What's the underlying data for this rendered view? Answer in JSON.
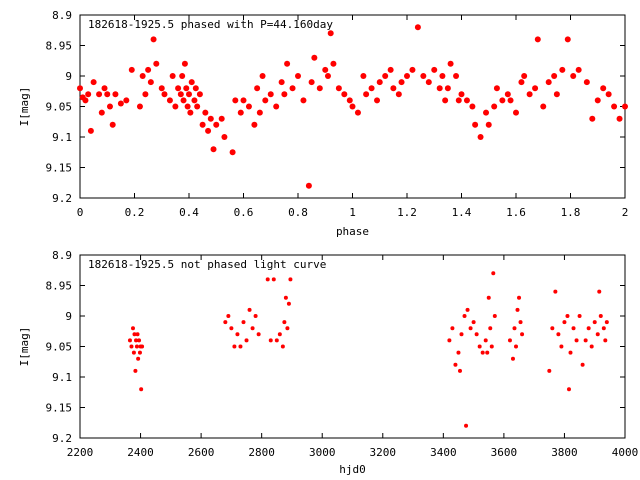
{
  "chart_data": [
    {
      "type": "scatter",
      "title": "182618-1925.5 phased with P=44.160day",
      "xlabel": "phase",
      "ylabel": "I[mag]",
      "xlim": [
        0,
        2
      ],
      "ylim": [
        9.2,
        8.9
      ],
      "y_inverted": true,
      "grid": false,
      "x_ticks": [
        "0",
        "0.2",
        "0.4",
        "0.6",
        "0.8",
        "1",
        "1.2",
        "1.4",
        "1.6",
        "1.8",
        "2"
      ],
      "y_ticks": [
        "8.9",
        "8.95",
        "9",
        "9.05",
        "9.1",
        "9.15",
        "9.2"
      ],
      "marker_color": "#ff0000",
      "series": [
        {
          "points": [
            [
              0.0,
              9.02
            ],
            [
              0.01,
              9.035
            ],
            [
              0.02,
              9.04
            ],
            [
              0.03,
              9.03
            ],
            [
              0.04,
              9.09
            ],
            [
              0.05,
              9.01
            ],
            [
              0.07,
              9.03
            ],
            [
              0.08,
              9.06
            ],
            [
              0.09,
              9.02
            ],
            [
              0.1,
              9.03
            ],
            [
              0.11,
              9.05
            ],
            [
              0.12,
              9.08
            ],
            [
              0.13,
              9.03
            ],
            [
              0.15,
              9.045
            ],
            [
              0.17,
              9.04
            ],
            [
              0.19,
              8.99
            ],
            [
              0.22,
              9.05
            ],
            [
              0.23,
              9.0
            ],
            [
              0.24,
              9.03
            ],
            [
              0.25,
              8.99
            ],
            [
              0.26,
              9.01
            ],
            [
              0.27,
              8.94
            ],
            [
              0.28,
              8.98
            ],
            [
              0.3,
              9.02
            ],
            [
              0.31,
              9.03
            ],
            [
              0.33,
              9.04
            ],
            [
              0.34,
              9.0
            ],
            [
              0.35,
              9.05
            ],
            [
              0.36,
              9.02
            ],
            [
              0.37,
              9.03
            ],
            [
              0.375,
              9.0
            ],
            [
              0.38,
              9.04
            ],
            [
              0.385,
              8.98
            ],
            [
              0.39,
              9.02
            ],
            [
              0.395,
              9.05
            ],
            [
              0.4,
              9.03
            ],
            [
              0.405,
              9.06
            ],
            [
              0.41,
              9.01
            ],
            [
              0.42,
              9.04
            ],
            [
              0.425,
              9.02
            ],
            [
              0.43,
              9.05
            ],
            [
              0.44,
              9.03
            ],
            [
              0.45,
              9.08
            ],
            [
              0.46,
              9.06
            ],
            [
              0.47,
              9.09
            ],
            [
              0.48,
              9.07
            ],
            [
              0.49,
              9.12
            ],
            [
              0.5,
              9.08
            ],
            [
              0.52,
              9.07
            ],
            [
              0.53,
              9.1
            ],
            [
              0.56,
              9.125
            ],
            [
              0.57,
              9.04
            ],
            [
              0.59,
              9.06
            ],
            [
              0.6,
              9.04
            ],
            [
              0.62,
              9.05
            ],
            [
              0.64,
              9.08
            ],
            [
              0.65,
              9.02
            ],
            [
              0.66,
              9.06
            ],
            [
              0.67,
              9.0
            ],
            [
              0.68,
              9.04
            ],
            [
              0.7,
              9.03
            ],
            [
              0.72,
              9.05
            ],
            [
              0.74,
              9.01
            ],
            [
              0.75,
              9.03
            ],
            [
              0.76,
              8.98
            ],
            [
              0.78,
              9.02
            ],
            [
              0.8,
              9.0
            ],
            [
              0.82,
              9.04
            ],
            [
              0.84,
              9.18
            ],
            [
              0.85,
              9.01
            ],
            [
              0.86,
              8.97
            ],
            [
              0.88,
              9.02
            ],
            [
              0.9,
              8.99
            ],
            [
              0.91,
              9.0
            ],
            [
              0.92,
              8.93
            ],
            [
              0.93,
              8.98
            ],
            [
              0.95,
              9.02
            ],
            [
              0.97,
              9.03
            ],
            [
              0.99,
              9.04
            ],
            [
              1.0,
              9.05
            ],
            [
              1.02,
              9.06
            ],
            [
              1.04,
              9.0
            ],
            [
              1.05,
              9.03
            ],
            [
              1.07,
              9.02
            ],
            [
              1.09,
              9.04
            ],
            [
              1.1,
              9.01
            ],
            [
              1.12,
              9.0
            ],
            [
              1.14,
              8.99
            ],
            [
              1.15,
              9.02
            ],
            [
              1.17,
              9.03
            ],
            [
              1.18,
              9.01
            ],
            [
              1.2,
              9.0
            ],
            [
              1.22,
              8.99
            ],
            [
              1.24,
              8.92
            ],
            [
              1.26,
              9.0
            ],
            [
              1.28,
              9.01
            ],
            [
              1.3,
              8.99
            ],
            [
              1.32,
              9.02
            ],
            [
              1.33,
              9.0
            ],
            [
              1.34,
              9.04
            ],
            [
              1.35,
              9.02
            ],
            [
              1.36,
              8.98
            ],
            [
              1.38,
              9.0
            ],
            [
              1.39,
              9.04
            ],
            [
              1.4,
              9.03
            ],
            [
              1.42,
              9.04
            ],
            [
              1.44,
              9.05
            ],
            [
              1.45,
              9.08
            ],
            [
              1.47,
              9.1
            ],
            [
              1.49,
              9.06
            ],
            [
              1.5,
              9.08
            ],
            [
              1.52,
              9.05
            ],
            [
              1.53,
              9.02
            ],
            [
              1.55,
              9.04
            ],
            [
              1.57,
              9.03
            ],
            [
              1.58,
              9.04
            ],
            [
              1.6,
              9.06
            ],
            [
              1.62,
              9.01
            ],
            [
              1.63,
              9.0
            ],
            [
              1.65,
              9.03
            ],
            [
              1.67,
              9.02
            ],
            [
              1.68,
              8.94
            ],
            [
              1.7,
              9.05
            ],
            [
              1.72,
              9.01
            ],
            [
              1.74,
              9.0
            ],
            [
              1.75,
              9.03
            ],
            [
              1.77,
              8.99
            ],
            [
              1.79,
              8.94
            ],
            [
              1.81,
              9.0
            ],
            [
              1.83,
              8.99
            ],
            [
              1.86,
              9.01
            ],
            [
              1.88,
              9.07
            ],
            [
              1.9,
              9.04
            ],
            [
              1.92,
              9.02
            ],
            [
              1.94,
              9.03
            ],
            [
              1.96,
              9.05
            ],
            [
              1.98,
              9.07
            ],
            [
              2.0,
              9.05
            ]
          ]
        }
      ]
    },
    {
      "type": "scatter",
      "title": "182618-1925.5 not phased light curve",
      "xlabel": "hjd0",
      "ylabel": "I[mag]",
      "xlim": [
        2200,
        4000
      ],
      "ylim": [
        9.2,
        8.9
      ],
      "y_inverted": true,
      "grid": false,
      "x_ticks": [
        "2200",
        "2400",
        "2600",
        "2800",
        "3000",
        "3200",
        "3400",
        "3600",
        "3800",
        "4000"
      ],
      "y_ticks": [
        "8.9",
        "8.95",
        "9",
        "9.05",
        "9.1",
        "9.15",
        "9.2"
      ],
      "marker_color": "#ff0000",
      "series": [
        {
          "points": [
            [
              2365,
              9.04
            ],
            [
              2370,
              9.05
            ],
            [
              2375,
              9.02
            ],
            [
              2378,
              9.06
            ],
            [
              2380,
              9.03
            ],
            [
              2383,
              9.09
            ],
            [
              2385,
              9.04
            ],
            [
              2388,
              9.05
            ],
            [
              2390,
              9.03
            ],
            [
              2392,
              9.07
            ],
            [
              2395,
              9.04
            ],
            [
              2398,
              9.06
            ],
            [
              2400,
              9.05
            ],
            [
              2402,
              9.12
            ],
            [
              2405,
              9.05
            ],
            [
              2680,
              9.01
            ],
            [
              2690,
              9.0
            ],
            [
              2700,
              9.02
            ],
            [
              2710,
              9.05
            ],
            [
              2720,
              9.03
            ],
            [
              2730,
              9.05
            ],
            [
              2740,
              9.01
            ],
            [
              2750,
              9.04
            ],
            [
              2760,
              8.99
            ],
            [
              2770,
              9.02
            ],
            [
              2780,
              9.0
            ],
            [
              2790,
              9.03
            ],
            [
              2820,
              8.94
            ],
            [
              2830,
              9.04
            ],
            [
              2840,
              8.94
            ],
            [
              2850,
              9.04
            ],
            [
              2860,
              9.03
            ],
            [
              2870,
              9.05
            ],
            [
              2875,
              9.01
            ],
            [
              2880,
              8.97
            ],
            [
              2885,
              9.02
            ],
            [
              2890,
              8.98
            ],
            [
              2895,
              8.94
            ],
            [
              3420,
              9.04
            ],
            [
              3430,
              9.02
            ],
            [
              3440,
              9.08
            ],
            [
              3450,
              9.06
            ],
            [
              3455,
              9.09
            ],
            [
              3460,
              9.03
            ],
            [
              3470,
              9.0
            ],
            [
              3475,
              9.18
            ],
            [
              3480,
              8.99
            ],
            [
              3490,
              9.02
            ],
            [
              3500,
              9.01
            ],
            [
              3510,
              9.03
            ],
            [
              3520,
              9.05
            ],
            [
              3530,
              9.06
            ],
            [
              3540,
              9.04
            ],
            [
              3545,
              9.06
            ],
            [
              3550,
              8.97
            ],
            [
              3555,
              9.02
            ],
            [
              3560,
              9.05
            ],
            [
              3565,
              8.93
            ],
            [
              3570,
              9.0
            ],
            [
              3620,
              9.04
            ],
            [
              3630,
              9.07
            ],
            [
              3635,
              9.02
            ],
            [
              3640,
              9.05
            ],
            [
              3645,
              8.99
            ],
            [
              3650,
              8.97
            ],
            [
              3655,
              9.01
            ],
            [
              3660,
              9.03
            ],
            [
              3750,
              9.09
            ],
            [
              3760,
              9.02
            ],
            [
              3770,
              8.96
            ],
            [
              3780,
              9.03
            ],
            [
              3790,
              9.05
            ],
            [
              3800,
              9.01
            ],
            [
              3810,
              9.0
            ],
            [
              3815,
              9.12
            ],
            [
              3820,
              9.06
            ],
            [
              3830,
              9.02
            ],
            [
              3840,
              9.04
            ],
            [
              3850,
              9.0
            ],
            [
              3860,
              9.08
            ],
            [
              3870,
              9.04
            ],
            [
              3880,
              9.02
            ],
            [
              3890,
              9.05
            ],
            [
              3900,
              9.01
            ],
            [
              3910,
              9.03
            ],
            [
              3915,
              8.96
            ],
            [
              3920,
              9.0
            ],
            [
              3930,
              9.02
            ],
            [
              3935,
              9.04
            ],
            [
              3940,
              9.01
            ]
          ]
        }
      ]
    }
  ]
}
